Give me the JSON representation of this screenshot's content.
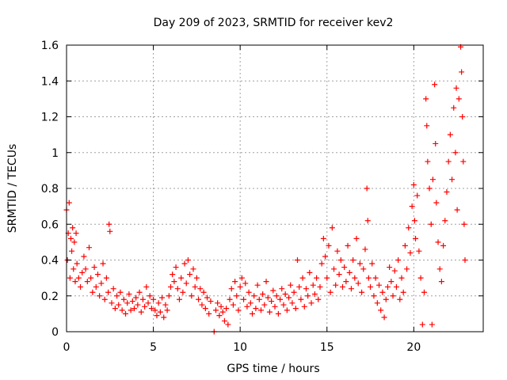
{
  "chart_data": {
    "type": "scatter",
    "title": "Day 209 of 2023, SRMTID for receiver kev2",
    "xlabel": "GPS time / hours",
    "ylabel": "SRMTID / TECUs",
    "xlim": [
      0,
      24
    ],
    "ylim": [
      0,
      1.6
    ],
    "x_ticks": [
      0,
      5,
      10,
      15,
      20
    ],
    "x_tick_labels": [
      "0",
      "5",
      "10",
      "15",
      "20"
    ],
    "y_ticks": [
      0,
      0.2,
      0.4,
      0.6,
      0.8,
      1.0,
      1.2,
      1.4,
      1.6
    ],
    "y_tick_labels": [
      "0",
      "0.2",
      "0.4",
      "0.6",
      "0.8",
      "1",
      "1.2",
      "1.4",
      "1.6"
    ],
    "grid": true,
    "marker": "+",
    "color": "#ff0000",
    "series": [
      {
        "name": "SRMTID",
        "points": [
          [
            0.0,
            0.68
          ],
          [
            0.05,
            0.4
          ],
          [
            0.1,
            0.55
          ],
          [
            0.15,
            0.72
          ],
          [
            0.2,
            0.3
          ],
          [
            0.25,
            0.52
          ],
          [
            0.3,
            0.45
          ],
          [
            0.35,
            0.58
          ],
          [
            0.4,
            0.35
          ],
          [
            0.45,
            0.5
          ],
          [
            0.5,
            0.28
          ],
          [
            0.55,
            0.55
          ],
          [
            0.6,
            0.38
          ],
          [
            0.7,
            0.3
          ],
          [
            0.8,
            0.25
          ],
          [
            0.9,
            0.33
          ],
          [
            1.0,
            0.42
          ],
          [
            1.1,
            0.35
          ],
          [
            1.2,
            0.28
          ],
          [
            1.3,
            0.47
          ],
          [
            1.4,
            0.3
          ],
          [
            1.5,
            0.22
          ],
          [
            1.6,
            0.36
          ],
          [
            1.7,
            0.25
          ],
          [
            1.8,
            0.32
          ],
          [
            1.9,
            0.2
          ],
          [
            2.0,
            0.27
          ],
          [
            2.1,
            0.38
          ],
          [
            2.2,
            0.18
          ],
          [
            2.3,
            0.3
          ],
          [
            2.4,
            0.22
          ],
          [
            2.45,
            0.6
          ],
          [
            2.5,
            0.56
          ],
          [
            2.6,
            0.16
          ],
          [
            2.7,
            0.24
          ],
          [
            2.8,
            0.13
          ],
          [
            2.9,
            0.2
          ],
          [
            3.0,
            0.15
          ],
          [
            3.1,
            0.22
          ],
          [
            3.2,
            0.12
          ],
          [
            3.3,
            0.18
          ],
          [
            3.4,
            0.1
          ],
          [
            3.5,
            0.16
          ],
          [
            3.6,
            0.21
          ],
          [
            3.7,
            0.12
          ],
          [
            3.8,
            0.17
          ],
          [
            3.9,
            0.13
          ],
          [
            4.0,
            0.19
          ],
          [
            4.1,
            0.15
          ],
          [
            4.2,
            0.22
          ],
          [
            4.3,
            0.11
          ],
          [
            4.4,
            0.18
          ],
          [
            4.5,
            0.14
          ],
          [
            4.6,
            0.25
          ],
          [
            4.7,
            0.16
          ],
          [
            4.8,
            0.2
          ],
          [
            4.9,
            0.13
          ],
          [
            5.0,
            0.18
          ],
          [
            5.1,
            0.12
          ],
          [
            5.2,
            0.09
          ],
          [
            5.3,
            0.16
          ],
          [
            5.4,
            0.11
          ],
          [
            5.5,
            0.19
          ],
          [
            5.6,
            0.08
          ],
          [
            5.7,
            0.15
          ],
          [
            5.8,
            0.12
          ],
          [
            5.9,
            0.2
          ],
          [
            6.0,
            0.25
          ],
          [
            6.1,
            0.32
          ],
          [
            6.2,
            0.28
          ],
          [
            6.3,
            0.36
          ],
          [
            6.4,
            0.24
          ],
          [
            6.5,
            0.18
          ],
          [
            6.6,
            0.3
          ],
          [
            6.7,
            0.22
          ],
          [
            6.8,
            0.38
          ],
          [
            6.9,
            0.27
          ],
          [
            7.0,
            0.4
          ],
          [
            7.1,
            0.32
          ],
          [
            7.2,
            0.2
          ],
          [
            7.3,
            0.35
          ],
          [
            7.4,
            0.25
          ],
          [
            7.5,
            0.3
          ],
          [
            7.6,
            0.18
          ],
          [
            7.7,
            0.24
          ],
          [
            7.8,
            0.15
          ],
          [
            7.9,
            0.22
          ],
          [
            8.0,
            0.13
          ],
          [
            8.1,
            0.19
          ],
          [
            8.2,
            0.1
          ],
          [
            8.3,
            0.17
          ],
          [
            8.5,
            0.0
          ],
          [
            8.6,
            0.12
          ],
          [
            8.7,
            0.16
          ],
          [
            8.8,
            0.09
          ],
          [
            8.9,
            0.14
          ],
          [
            9.0,
            0.11
          ],
          [
            9.1,
            0.06
          ],
          [
            9.2,
            0.13
          ],
          [
            9.3,
            0.04
          ],
          [
            9.4,
            0.18
          ],
          [
            9.5,
            0.24
          ],
          [
            9.6,
            0.15
          ],
          [
            9.7,
            0.28
          ],
          [
            9.8,
            0.2
          ],
          [
            9.9,
            0.12
          ],
          [
            10.0,
            0.25
          ],
          [
            10.1,
            0.3
          ],
          [
            10.2,
            0.18
          ],
          [
            10.3,
            0.27
          ],
          [
            10.4,
            0.14
          ],
          [
            10.5,
            0.22
          ],
          [
            10.6,
            0.16
          ],
          [
            10.7,
            0.1
          ],
          [
            10.8,
            0.2
          ],
          [
            10.9,
            0.13
          ],
          [
            11.0,
            0.26
          ],
          [
            11.1,
            0.18
          ],
          [
            11.2,
            0.12
          ],
          [
            11.3,
            0.21
          ],
          [
            11.4,
            0.15
          ],
          [
            11.5,
            0.28
          ],
          [
            11.6,
            0.19
          ],
          [
            11.7,
            0.11
          ],
          [
            11.8,
            0.17
          ],
          [
            11.9,
            0.23
          ],
          [
            12.0,
            0.14
          ],
          [
            12.1,
            0.2
          ],
          [
            12.2,
            0.1
          ],
          [
            12.3,
            0.18
          ],
          [
            12.4,
            0.24
          ],
          [
            12.5,
            0.15
          ],
          [
            12.6,
            0.21
          ],
          [
            12.7,
            0.12
          ],
          [
            12.8,
            0.19
          ],
          [
            12.9,
            0.26
          ],
          [
            13.0,
            0.16
          ],
          [
            13.1,
            0.22
          ],
          [
            13.2,
            0.13
          ],
          [
            13.3,
            0.4
          ],
          [
            13.4,
            0.25
          ],
          [
            13.5,
            0.18
          ],
          [
            13.6,
            0.3
          ],
          [
            13.7,
            0.14
          ],
          [
            13.8,
            0.24
          ],
          [
            13.9,
            0.2
          ],
          [
            14.0,
            0.33
          ],
          [
            14.1,
            0.16
          ],
          [
            14.2,
            0.26
          ],
          [
            14.3,
            0.21
          ],
          [
            14.4,
            0.3
          ],
          [
            14.5,
            0.18
          ],
          [
            14.6,
            0.25
          ],
          [
            14.7,
            0.38
          ],
          [
            14.8,
            0.52
          ],
          [
            14.9,
            0.42
          ],
          [
            15.0,
            0.3
          ],
          [
            15.1,
            0.48
          ],
          [
            15.2,
            0.22
          ],
          [
            15.3,
            0.58
          ],
          [
            15.4,
            0.35
          ],
          [
            15.5,
            0.26
          ],
          [
            15.6,
            0.45
          ],
          [
            15.7,
            0.32
          ],
          [
            15.8,
            0.4
          ],
          [
            15.9,
            0.25
          ],
          [
            16.0,
            0.36
          ],
          [
            16.1,
            0.28
          ],
          [
            16.2,
            0.48
          ],
          [
            16.3,
            0.33
          ],
          [
            16.4,
            0.24
          ],
          [
            16.5,
            0.4
          ],
          [
            16.6,
            0.3
          ],
          [
            16.7,
            0.52
          ],
          [
            16.8,
            0.27
          ],
          [
            16.9,
            0.38
          ],
          [
            17.0,
            0.22
          ],
          [
            17.1,
            0.35
          ],
          [
            17.2,
            0.46
          ],
          [
            17.3,
            0.8
          ],
          [
            17.35,
            0.62
          ],
          [
            17.4,
            0.3
          ],
          [
            17.5,
            0.25
          ],
          [
            17.6,
            0.38
          ],
          [
            17.7,
            0.2
          ],
          [
            17.8,
            0.3
          ],
          [
            17.9,
            0.16
          ],
          [
            18.0,
            0.26
          ],
          [
            18.1,
            0.12
          ],
          [
            18.2,
            0.22
          ],
          [
            18.3,
            0.08
          ],
          [
            18.4,
            0.18
          ],
          [
            18.5,
            0.25
          ],
          [
            18.6,
            0.36
          ],
          [
            18.7,
            0.28
          ],
          [
            18.8,
            0.2
          ],
          [
            18.9,
            0.34
          ],
          [
            19.0,
            0.25
          ],
          [
            19.1,
            0.4
          ],
          [
            19.2,
            0.18
          ],
          [
            19.3,
            0.3
          ],
          [
            19.4,
            0.22
          ],
          [
            19.5,
            0.48
          ],
          [
            19.6,
            0.35
          ],
          [
            19.7,
            0.58
          ],
          [
            19.8,
            0.44
          ],
          [
            19.9,
            0.7
          ],
          [
            20.0,
            0.82
          ],
          [
            20.05,
            0.62
          ],
          [
            20.1,
            0.52
          ],
          [
            20.2,
            0.76
          ],
          [
            20.3,
            0.45
          ],
          [
            20.4,
            0.3
          ],
          [
            20.5,
            0.04
          ],
          [
            20.6,
            0.22
          ],
          [
            20.7,
            1.3
          ],
          [
            20.75,
            1.15
          ],
          [
            20.8,
            0.95
          ],
          [
            20.9,
            0.8
          ],
          [
            21.0,
            0.6
          ],
          [
            21.05,
            0.04
          ],
          [
            21.1,
            0.85
          ],
          [
            21.2,
            1.38
          ],
          [
            21.25,
            1.05
          ],
          [
            21.3,
            0.72
          ],
          [
            21.4,
            0.5
          ],
          [
            21.5,
            0.35
          ],
          [
            21.6,
            0.28
          ],
          [
            21.7,
            0.48
          ],
          [
            21.8,
            0.62
          ],
          [
            21.9,
            0.78
          ],
          [
            22.0,
            0.95
          ],
          [
            22.1,
            1.1
          ],
          [
            22.2,
            0.85
          ],
          [
            22.3,
            1.25
          ],
          [
            22.4,
            1.0
          ],
          [
            22.45,
            1.36
          ],
          [
            22.5,
            0.68
          ],
          [
            22.6,
            1.3
          ],
          [
            22.7,
            1.59
          ],
          [
            22.75,
            1.45
          ],
          [
            22.8,
            1.2
          ],
          [
            22.85,
            0.95
          ],
          [
            22.9,
            0.6
          ],
          [
            22.95,
            0.4
          ]
        ]
      }
    ]
  }
}
